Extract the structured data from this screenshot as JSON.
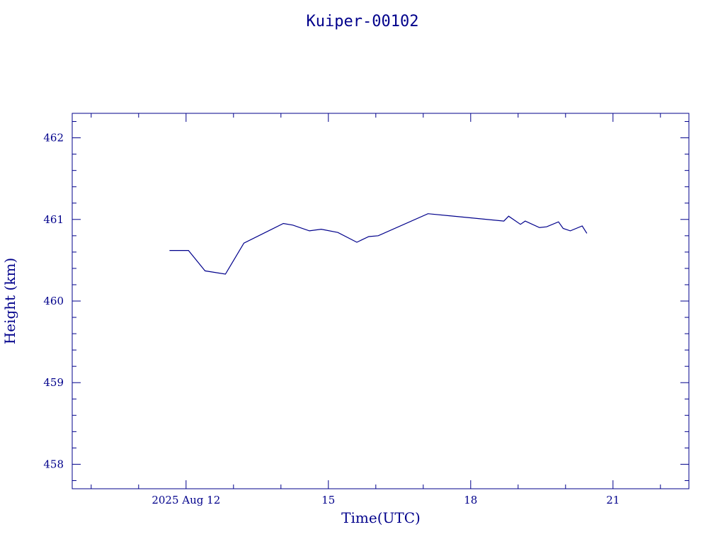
{
  "chart_data": {
    "type": "line",
    "title": "Kuiper-00102",
    "xlabel": "Time(UTC)",
    "ylabel": "Height (km)",
    "x_unit": "days (2025 Aug)",
    "xlim": [
      9.6,
      22.6
    ],
    "ylim": [
      457.7,
      462.3
    ],
    "x_ticks": [
      {
        "value": 12,
        "label": "2025 Aug 12"
      },
      {
        "value": 15,
        "label": "15"
      },
      {
        "value": 18,
        "label": "18"
      },
      {
        "value": 21,
        "label": "21"
      }
    ],
    "y_ticks": [
      {
        "value": 458,
        "label": "458"
      },
      {
        "value": 459,
        "label": "459"
      },
      {
        "value": 460,
        "label": "460"
      },
      {
        "value": 461,
        "label": "461"
      },
      {
        "value": 462,
        "label": "462"
      }
    ],
    "series": [
      {
        "points": [
          {
            "x": 11.65,
            "y": 460.62
          },
          {
            "x": 12.05,
            "y": 460.62
          },
          {
            "x": 12.4,
            "y": 460.37
          },
          {
            "x": 12.83,
            "y": 460.33
          },
          {
            "x": 13.22,
            "y": 460.71
          },
          {
            "x": 14.05,
            "y": 460.95
          },
          {
            "x": 14.25,
            "y": 460.93
          },
          {
            "x": 14.6,
            "y": 460.86
          },
          {
            "x": 14.85,
            "y": 460.88
          },
          {
            "x": 15.2,
            "y": 460.84
          },
          {
            "x": 15.6,
            "y": 460.72
          },
          {
            "x": 15.85,
            "y": 460.79
          },
          {
            "x": 16.05,
            "y": 460.8
          },
          {
            "x": 17.1,
            "y": 461.07
          },
          {
            "x": 18.7,
            "y": 460.98
          },
          {
            "x": 18.8,
            "y": 461.04
          },
          {
            "x": 19.05,
            "y": 460.94
          },
          {
            "x": 19.15,
            "y": 460.98
          },
          {
            "x": 19.45,
            "y": 460.9
          },
          {
            "x": 19.6,
            "y": 460.91
          },
          {
            "x": 19.85,
            "y": 460.97
          },
          {
            "x": 19.95,
            "y": 460.89
          },
          {
            "x": 20.1,
            "y": 460.86
          },
          {
            "x": 20.35,
            "y": 460.92
          },
          {
            "x": 20.45,
            "y": 460.83
          }
        ]
      }
    ]
  }
}
